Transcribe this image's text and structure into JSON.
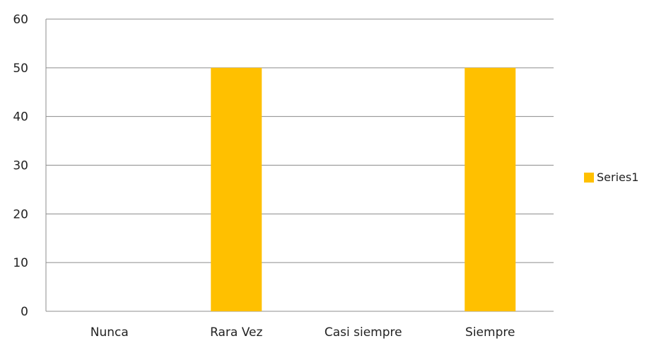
{
  "chart_data": {
    "type": "bar",
    "categories": [
      "Nunca",
      "Rara Vez",
      "Casi siempre",
      "Siempre"
    ],
    "series": [
      {
        "name": "Series1",
        "values": [
          0,
          50,
          0,
          50
        ],
        "color": "#ffc000"
      }
    ],
    "title": "",
    "xlabel": "",
    "ylabel": "",
    "ylim": [
      0,
      60
    ],
    "yticks": [
      0,
      10,
      20,
      30,
      40,
      50,
      60
    ],
    "grid": true,
    "legend_position": "right"
  },
  "legend": {
    "label": "Series1",
    "color": "#ffc000"
  }
}
